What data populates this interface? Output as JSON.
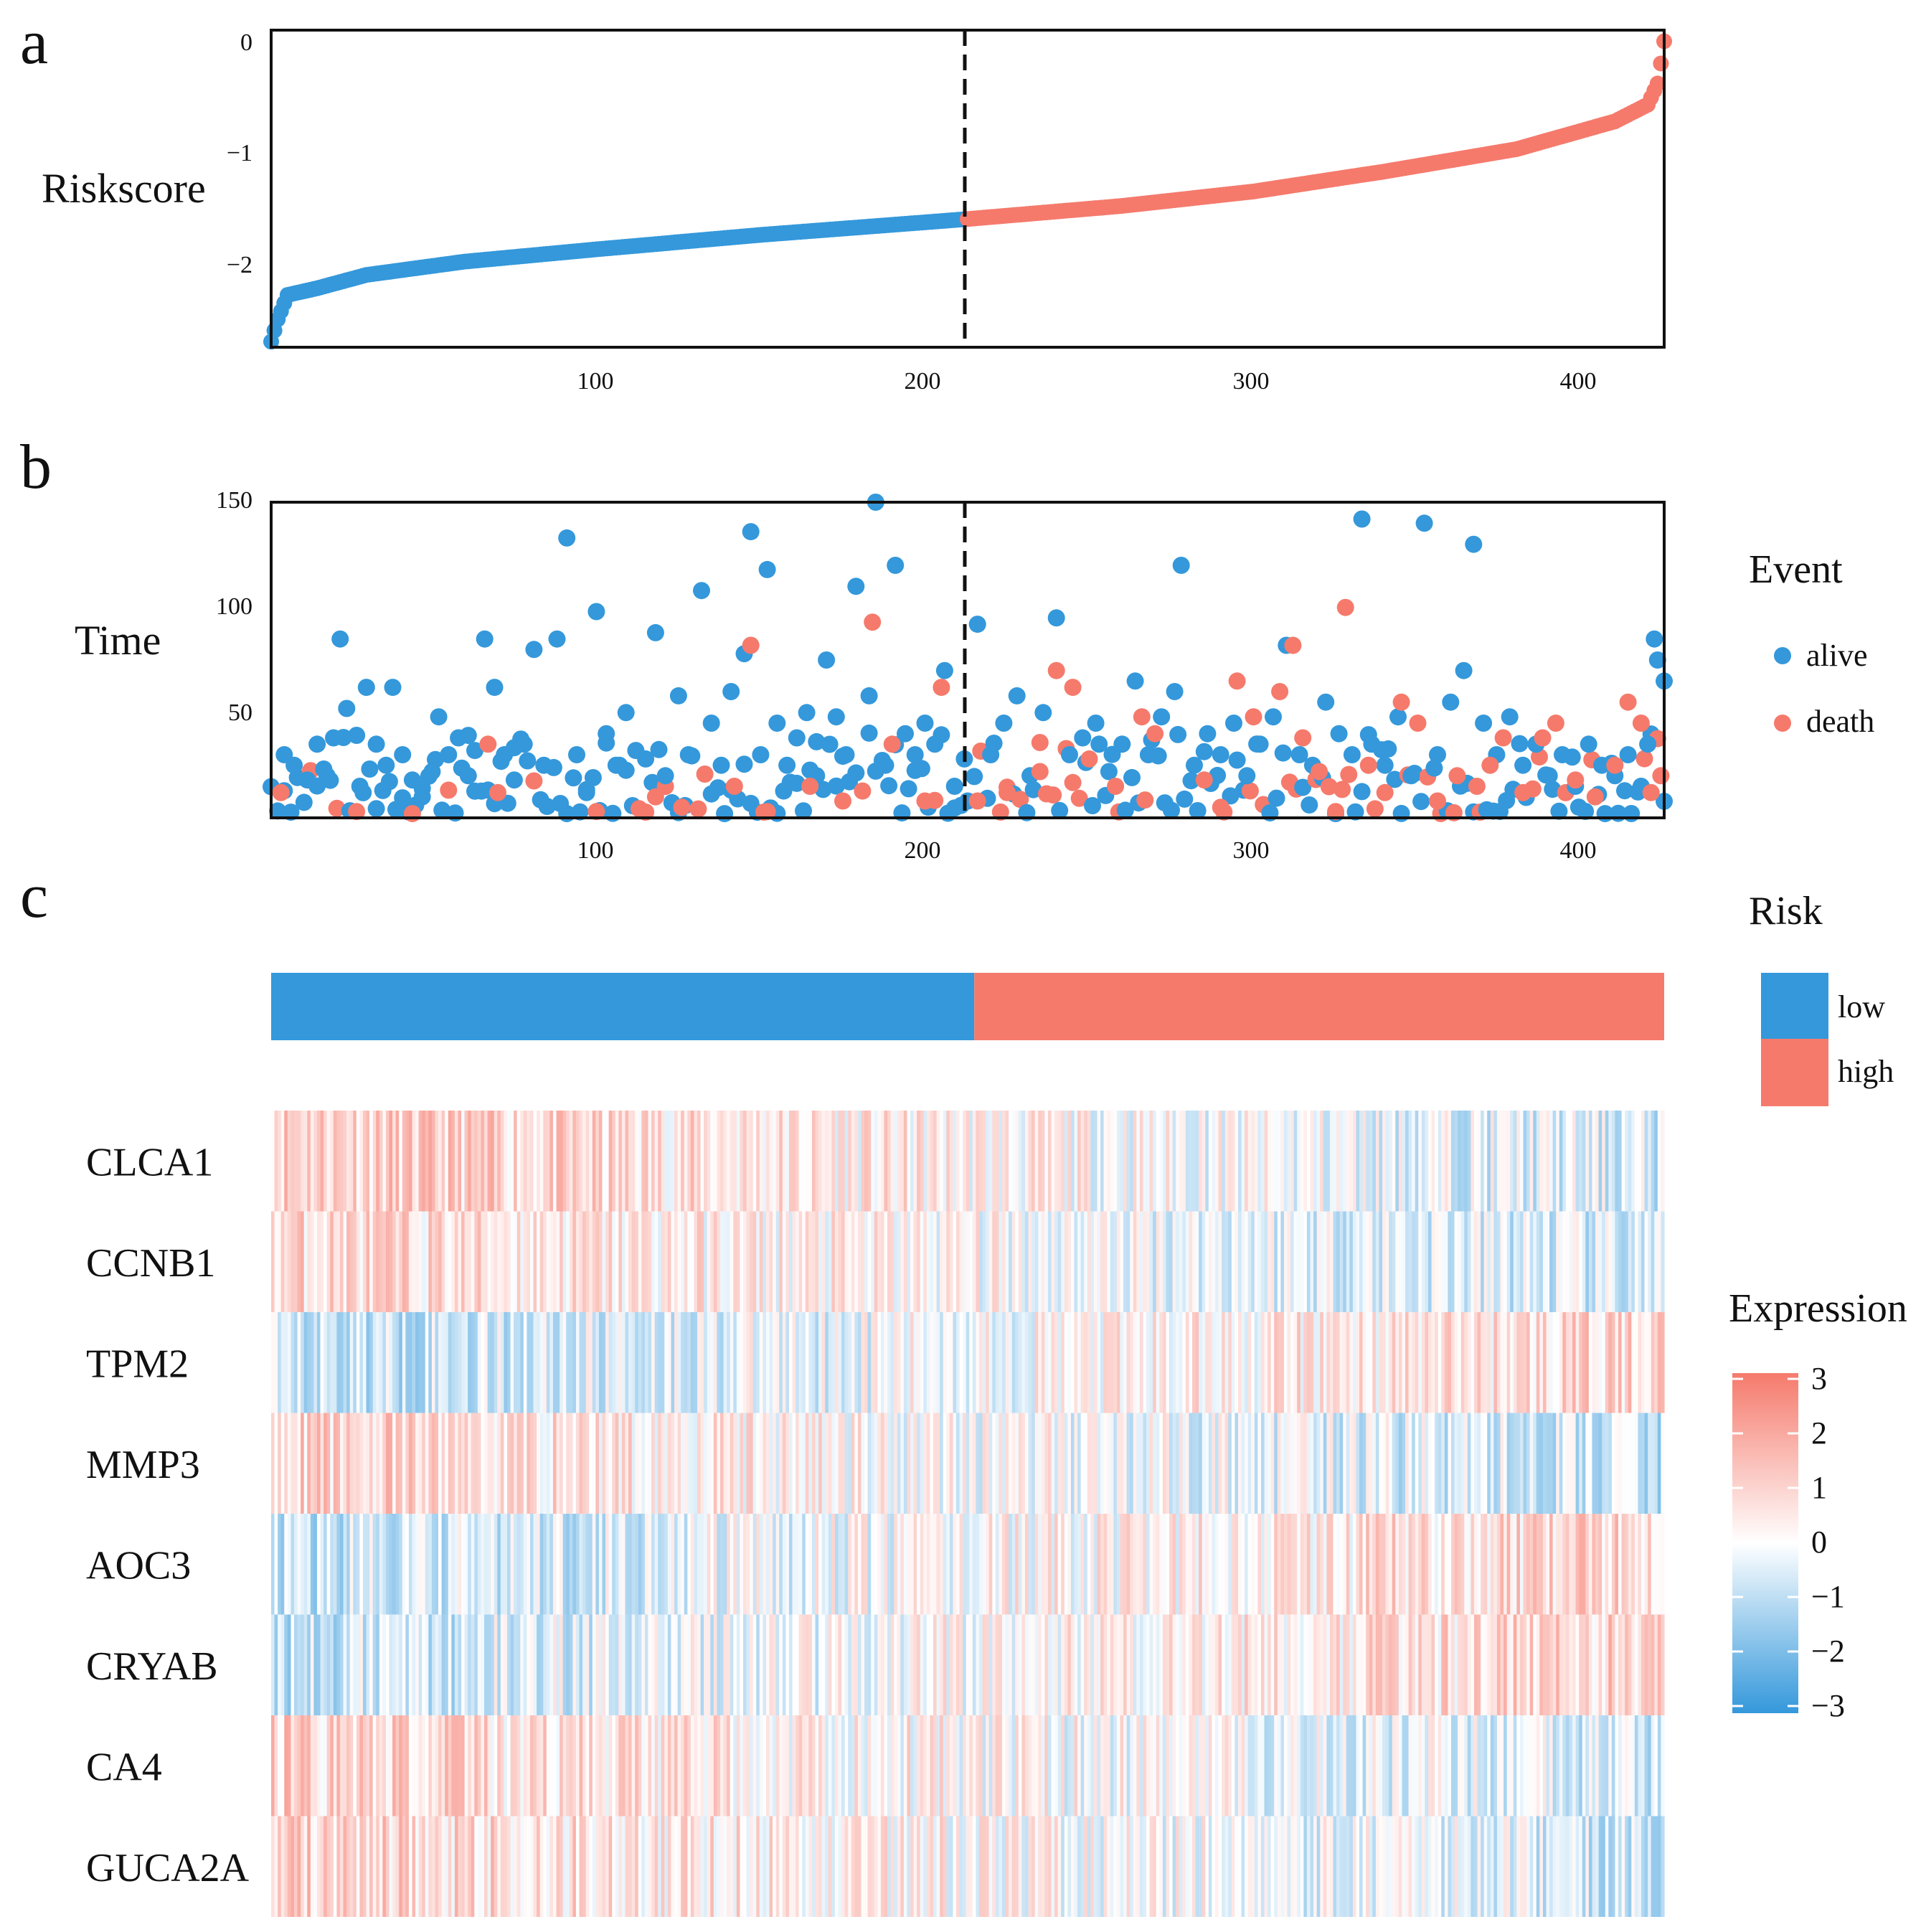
{
  "colors": {
    "low": "#3498DB",
    "high": "#F57A6C",
    "neutral": "#FFFFFF",
    "axis": "#111111"
  },
  "chart_data": [
    {
      "panel": "a",
      "type": "scatter",
      "ylabel": "Riskscore",
      "xlim": [
        1,
        425
      ],
      "ylim": [
        -2.75,
        0.1
      ],
      "x_ticks": [
        100,
        200,
        300,
        400
      ],
      "y_ticks": [
        0,
        -1,
        -2
      ],
      "cutoff": 212,
      "n_samples": 425,
      "curve_knots": [
        {
          "x": 1,
          "y": -2.7
        },
        {
          "x": 3,
          "y": -2.5
        },
        {
          "x": 6,
          "y": -2.28
        },
        {
          "x": 15,
          "y": -2.22
        },
        {
          "x": 30,
          "y": -2.1
        },
        {
          "x": 60,
          "y": -1.98
        },
        {
          "x": 100,
          "y": -1.87
        },
        {
          "x": 150,
          "y": -1.74
        },
        {
          "x": 212,
          "y": -1.6
        },
        {
          "x": 260,
          "y": -1.48
        },
        {
          "x": 300,
          "y": -1.35
        },
        {
          "x": 340,
          "y": -1.17
        },
        {
          "x": 380,
          "y": -0.97
        },
        {
          "x": 410,
          "y": -0.72
        },
        {
          "x": 420,
          "y": -0.57
        },
        {
          "x": 423,
          "y": -0.38
        },
        {
          "x": 424,
          "y": -0.2
        },
        {
          "x": 425,
          "y": 0.0
        }
      ],
      "series": [
        {
          "name": "low",
          "color": "#3498DB"
        },
        {
          "name": "high",
          "color": "#F57A6C"
        }
      ]
    },
    {
      "panel": "b",
      "type": "scatter",
      "ylabel": "Time",
      "xlim": [
        1,
        425
      ],
      "ylim": [
        0,
        150
      ],
      "x_ticks": [
        100,
        200,
        300,
        400
      ],
      "y_ticks": [
        150,
        100,
        50
      ],
      "cutoff": 212,
      "legend": {
        "title": "Event",
        "position": "right",
        "items": [
          "alive",
          "death"
        ]
      },
      "points_alive": [
        [
          5,
          30
        ],
        [
          8,
          25
        ],
        [
          12,
          18
        ],
        [
          15,
          35
        ],
        [
          18,
          20
        ],
        [
          20,
          38
        ],
        [
          22,
          85
        ],
        [
          24,
          52
        ],
        [
          28,
          15
        ],
        [
          30,
          62
        ],
        [
          33,
          35
        ],
        [
          36,
          25
        ],
        [
          38,
          62
        ],
        [
          41,
          30
        ],
        [
          44,
          18
        ],
        [
          47,
          10
        ],
        [
          50,
          22
        ],
        [
          52,
          48
        ],
        [
          55,
          30
        ],
        [
          58,
          38
        ],
        [
          61,
          20
        ],
        [
          63,
          32
        ],
        [
          66,
          85
        ],
        [
          69,
          62
        ],
        [
          72,
          30
        ],
        [
          75,
          18
        ],
        [
          78,
          35
        ],
        [
          81,
          80
        ],
        [
          84,
          25
        ],
        [
          88,
          85
        ],
        [
          91,
          133
        ],
        [
          94,
          30
        ],
        [
          97,
          12
        ],
        [
          100,
          98
        ],
        [
          103,
          40
        ],
        [
          106,
          25
        ],
        [
          109,
          50
        ],
        [
          112,
          32
        ],
        [
          115,
          28
        ],
        [
          118,
          88
        ],
        [
          121,
          20
        ],
        [
          125,
          58
        ],
        [
          128,
          30
        ],
        [
          132,
          108
        ],
        [
          135,
          45
        ],
        [
          138,
          25
        ],
        [
          141,
          60
        ],
        [
          145,
          78
        ],
        [
          147,
          136
        ],
        [
          150,
          30
        ],
        [
          152,
          118
        ],
        [
          155,
          45
        ],
        [
          158,
          25
        ],
        [
          161,
          38
        ],
        [
          164,
          50
        ],
        [
          167,
          20
        ],
        [
          170,
          75
        ],
        [
          173,
          48
        ],
        [
          176,
          30
        ],
        [
          179,
          110
        ],
        [
          183,
          58
        ],
        [
          185,
          150
        ],
        [
          188,
          25
        ],
        [
          191,
          120
        ],
        [
          194,
          40
        ],
        [
          197,
          30
        ],
        [
          200,
          45
        ],
        [
          203,
          35
        ],
        [
          206,
          70
        ],
        [
          209,
          15
        ],
        [
          212,
          28
        ],
        [
          216,
          92
        ],
        [
          220,
          30
        ],
        [
          224,
          45
        ],
        [
          228,
          58
        ],
        [
          232,
          20
        ],
        [
          236,
          50
        ],
        [
          240,
          95
        ],
        [
          244,
          30
        ],
        [
          248,
          38
        ],
        [
          252,
          45
        ],
        [
          256,
          22
        ],
        [
          260,
          35
        ],
        [
          264,
          65
        ],
        [
          268,
          30
        ],
        [
          272,
          48
        ],
        [
          276,
          60
        ],
        [
          278,
          120
        ],
        [
          282,
          25
        ],
        [
          286,
          40
        ],
        [
          290,
          30
        ],
        [
          294,
          45
        ],
        [
          298,
          20
        ],
        [
          302,
          35
        ],
        [
          306,
          48
        ],
        [
          310,
          82
        ],
        [
          314,
          30
        ],
        [
          318,
          25
        ],
        [
          322,
          55
        ],
        [
          326,
          40
        ],
        [
          330,
          30
        ],
        [
          333,
          142
        ],
        [
          336,
          35
        ],
        [
          340,
          25
        ],
        [
          344,
          48
        ],
        [
          348,
          20
        ],
        [
          352,
          140
        ],
        [
          356,
          30
        ],
        [
          360,
          55
        ],
        [
          364,
          70
        ],
        [
          367,
          130
        ],
        [
          370,
          45
        ],
        [
          374,
          30
        ],
        [
          378,
          48
        ],
        [
          382,
          25
        ],
        [
          386,
          35
        ],
        [
          390,
          20
        ],
        [
          394,
          30
        ],
        [
          398,
          15
        ],
        [
          402,
          35
        ],
        [
          406,
          25
        ],
        [
          410,
          20
        ],
        [
          414,
          30
        ],
        [
          418,
          15
        ],
        [
          420,
          35
        ],
        [
          422,
          85
        ],
        [
          423,
          75
        ],
        [
          425,
          65
        ]
      ],
      "points_death": [
        [
          4,
          12
        ],
        [
          27,
          3
        ],
        [
          44,
          2
        ],
        [
          67,
          35
        ],
        [
          70,
          12
        ],
        [
          100,
          3
        ],
        [
          118,
          10
        ],
        [
          126,
          5
        ],
        [
          142,
          15
        ],
        [
          147,
          82
        ],
        [
          152,
          3
        ],
        [
          165,
          15
        ],
        [
          175,
          8
        ],
        [
          184,
          93
        ],
        [
          190,
          35
        ],
        [
          200,
          8
        ],
        [
          205,
          62
        ],
        [
          216,
          8
        ],
        [
          225,
          12
        ],
        [
          235,
          22
        ],
        [
          240,
          70
        ],
        [
          245,
          62
        ],
        [
          250,
          28
        ],
        [
          258,
          15
        ],
        [
          266,
          48
        ],
        [
          270,
          40
        ],
        [
          285,
          18
        ],
        [
          290,
          5
        ],
        [
          295,
          65
        ],
        [
          300,
          48
        ],
        [
          308,
          60
        ],
        [
          312,
          82
        ],
        [
          315,
          38
        ],
        [
          320,
          22
        ],
        [
          325,
          3
        ],
        [
          328,
          100
        ],
        [
          335,
          25
        ],
        [
          340,
          12
        ],
        [
          345,
          55
        ],
        [
          350,
          45
        ],
        [
          356,
          8
        ],
        [
          362,
          20
        ],
        [
          368,
          15
        ],
        [
          372,
          25
        ],
        [
          376,
          38
        ],
        [
          382,
          12
        ],
        [
          388,
          38
        ],
        [
          392,
          45
        ],
        [
          398,
          18
        ],
        [
          404,
          10
        ],
        [
          410,
          25
        ],
        [
          414,
          55
        ],
        [
          418,
          45
        ],
        [
          421,
          12
        ],
        [
          424,
          20
        ]
      ]
    },
    {
      "panel": "c",
      "type": "heatmap",
      "annotation": {
        "title": "Risk",
        "categories": [
          "low",
          "high"
        ],
        "cutoff": 212
      },
      "genes": [
        "CLCA1",
        "CCNB1",
        "TPM2",
        "MMP3",
        "AOC3",
        "CRYAB",
        "CA4",
        "GUCA2A"
      ],
      "n_samples": 425,
      "legend": {
        "title": "Expression",
        "ticks": [
          3,
          2,
          1,
          0,
          -1,
          -2,
          -3
        ],
        "range": [
          -3,
          3
        ]
      },
      "gene_trend": [
        {
          "gene": "CLCA1",
          "low_mean": 1.2,
          "high_mean": -0.6
        },
        {
          "gene": "CCNB1",
          "low_mean": 0.9,
          "high_mean": -0.7
        },
        {
          "gene": "TPM2",
          "low_mean": -0.9,
          "high_mean": 0.9
        },
        {
          "gene": "MMP3",
          "low_mean": 1.0,
          "high_mean": -0.8
        },
        {
          "gene": "AOC3",
          "low_mean": -0.9,
          "high_mean": 1.0
        },
        {
          "gene": "CRYAB",
          "low_mean": -0.8,
          "high_mean": 1.0
        },
        {
          "gene": "CA4",
          "low_mean": 1.0,
          "high_mean": -0.6
        },
        {
          "gene": "GUCA2A",
          "low_mean": 1.0,
          "high_mean": -0.6
        }
      ]
    }
  ],
  "labels": {
    "panel_a": "a",
    "panel_b": "b",
    "panel_c": "c",
    "riskscore_label": "Riskscore",
    "time_label": "Time",
    "x_tick_100": "100",
    "x_tick_200": "200",
    "x_tick_300": "300",
    "x_tick_400": "400",
    "a_y_0": "0",
    "a_y_m1": "−1",
    "a_y_m2": "−2",
    "b_y_150": "150",
    "b_y_100": "100",
    "b_y_50": "50",
    "event_title": "Event",
    "event_alive": "alive",
    "event_death": "death",
    "risk_title": "Risk",
    "risk_low": "low",
    "risk_high": "high",
    "expression_title": "Expression",
    "expr_3": "3",
    "expr_2": "2",
    "expr_1": "1",
    "expr_0": "0",
    "expr_m1": "−1",
    "expr_m2": "−2",
    "expr_m3": "−3"
  }
}
